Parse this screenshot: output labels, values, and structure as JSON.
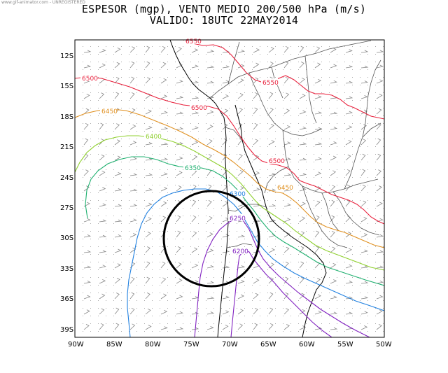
{
  "watermark": "www.gif-animator.com - UNREGISTERED",
  "title": {
    "line1": "ESPESOR (mgp), VENTO MEDIO 200/500 hPa (m/s)",
    "line2": "VALIDO: 18UTC 22MAY2014"
  },
  "axes": {
    "lat_labels": [
      "12S",
      "15S",
      "18S",
      "21S",
      "24S",
      "27S",
      "30S",
      "33S",
      "36S",
      "39S"
    ],
    "lon_labels": [
      "90W",
      "85W",
      "80W",
      "75W",
      "70W",
      "65W",
      "60W",
      "55W",
      "50W"
    ]
  },
  "contours": [
    {
      "value": "6550",
      "color": "#e8203c"
    },
    {
      "value": "6500",
      "color": "#e8203c"
    },
    {
      "value": "6450",
      "color": "#e09020"
    },
    {
      "value": "6400",
      "color": "#90d030"
    },
    {
      "value": "6350",
      "color": "#20b070"
    },
    {
      "value": "6300",
      "color": "#2080e0"
    },
    {
      "value": "6250",
      "color": "#8020c0"
    },
    {
      "value": "6200",
      "color": "#8020c0"
    }
  ],
  "colors": {
    "frame": "#000000",
    "coast": "#000000",
    "borders": "#666666",
    "wind_barbs": "#888888",
    "grid_dots": "#aaaaaa",
    "highlight_circle": "#000000"
  }
}
